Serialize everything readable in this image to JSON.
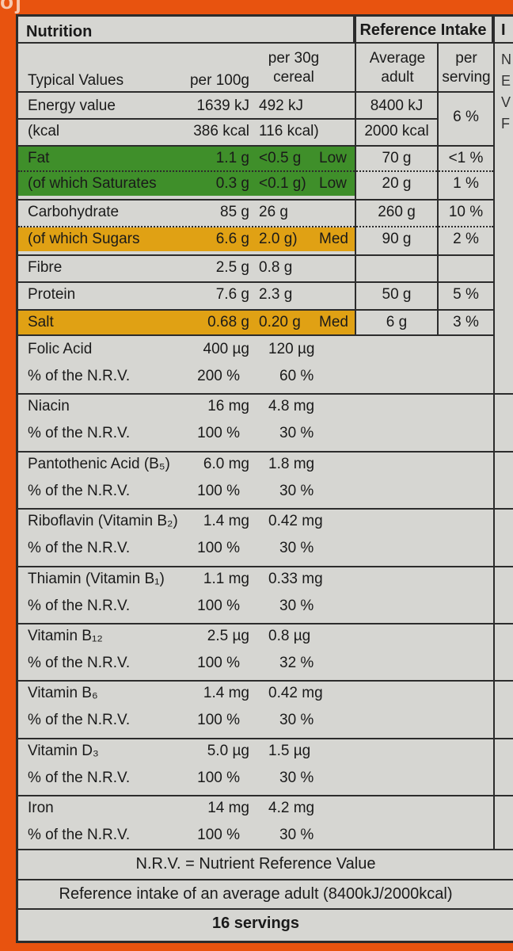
{
  "logo_fragment": "oj",
  "header": {
    "nutrition": "Nutrition",
    "reference_intake": "Reference Intake",
    "side": "I"
  },
  "columns": {
    "typical_values": "Typical Values",
    "per100_label": "per 100g",
    "per30_label_1": "per 30g",
    "per30_label_2": "cereal",
    "avg_label_1": "Average",
    "avg_label_2": "adult",
    "perserv_label_1": "per",
    "perserv_label_2": "serving"
  },
  "main_rows": [
    {
      "name": "Energy value",
      "per100": "1639 kJ",
      "per30": "492 kJ",
      "ri": "8400 kJ",
      "serving": "6 %"
    },
    {
      "name": "(kcal",
      "per100": "386 kcal",
      "per30": "116 kcal)",
      "ri": "2000 kcal",
      "serving": ""
    },
    {
      "name": "Fat",
      "per100": "1.1 g",
      "per30": "<0.5 g",
      "level": "Low",
      "ri": "70 g",
      "serving": "<1 %"
    },
    {
      "name": "(of which Saturates",
      "per100": "0.3 g",
      "per30": "<0.1 g)",
      "level": "Low",
      "ri": "20 g",
      "serving": "1 %"
    },
    {
      "name": "Carbohydrate",
      "per100": "85 g",
      "per30": "26 g",
      "ri": "260 g",
      "serving": "10 %"
    },
    {
      "name": "(of which Sugars",
      "per100": "6.6 g",
      "per30": "2.0 g)",
      "level": "Med",
      "ri": "90 g",
      "serving": "2 %"
    },
    {
      "name": "Fibre",
      "per100": "2.5 g",
      "per30": "0.8 g",
      "ri": "",
      "serving": ""
    },
    {
      "name": "Protein",
      "per100": "7.6 g",
      "per30": "2.3 g",
      "ri": "50 g",
      "serving": "5 %"
    },
    {
      "name": "Salt",
      "per100": "0.68 g",
      "per30": "0.20 g",
      "level": "Med",
      "ri": "6 g",
      "serving": "3 %"
    }
  ],
  "vitamins": [
    {
      "name": "Folic Acid",
      "per100": "400 µg",
      "per30": "120 µg",
      "nrv_label": "% of the N.R.V.",
      "nrv100": "200 %",
      "nrv30": "60 %"
    },
    {
      "name": "Niacin",
      "per100": "16 mg",
      "per30": "4.8 mg",
      "nrv_label": "% of the N.R.V.",
      "nrv100": "100 %",
      "nrv30": "30 %"
    },
    {
      "name": "Pantothenic Acid (B₅)",
      "per100": "6.0 mg",
      "per30": "1.8 mg",
      "nrv_label": "% of the N.R.V.",
      "nrv100": "100 %",
      "nrv30": "30 %"
    },
    {
      "name": "Riboflavin (Vitamin B₂)",
      "per100": "1.4 mg",
      "per30": "0.42 mg",
      "nrv_label": "% of the N.R.V.",
      "nrv100": "100 %",
      "nrv30": "30 %"
    },
    {
      "name": "Thiamin (Vitamin B₁)",
      "per100": "1.1 mg",
      "per30": "0.33 mg",
      "nrv_label": "% of the N.R.V.",
      "nrv100": "100 %",
      "nrv30": "30 %"
    },
    {
      "name": "Vitamin B₁₂",
      "per100": "2.5 µg",
      "per30": "0.8 µg",
      "nrv_label": "% of the N.R.V.",
      "nrv100": "100 %",
      "nrv30": "32 %"
    },
    {
      "name": "Vitamin B₆",
      "per100": "1.4 mg",
      "per30": "0.42 mg",
      "nrv_label": "% of the N.R.V.",
      "nrv100": "100 %",
      "nrv30": "30 %"
    },
    {
      "name": "Vitamin D₃",
      "per100": "5.0 µg",
      "per30": "1.5 µg",
      "nrv_label": "% of the N.R.V.",
      "nrv100": "100 %",
      "nrv30": "30 %"
    },
    {
      "name": "Iron",
      "per100": "14 mg",
      "per30": "4.2 mg",
      "nrv_label": "% of the N.R.V.",
      "nrv100": "100 %",
      "nrv30": "30 %"
    }
  ],
  "footer": {
    "nrv_note": "N.R.V. = Nutrient Reference Value",
    "ri_note": "Reference intake of an average adult (8400kJ/2000kcal)",
    "servings": "16 servings"
  },
  "side_letters": [
    "N",
    "E",
    "V",
    "F"
  ],
  "colors": {
    "green": "#3f8f2a",
    "amber": "#e0a114",
    "panel": "#d6d6d2",
    "background": "#e8530f"
  }
}
